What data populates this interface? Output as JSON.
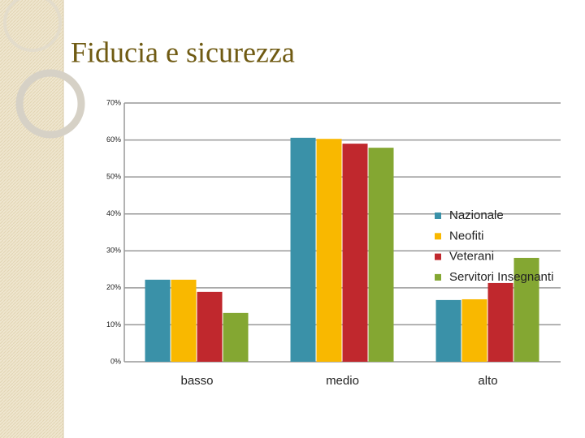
{
  "chart_data": {
    "type": "bar",
    "title": "Fiducia e sicurezza",
    "categories": [
      "basso",
      "medio",
      "alto"
    ],
    "series": [
      {
        "name": "Nazionale",
        "color": "#3a91a8",
        "values": [
          22.2,
          60.6,
          16.7
        ]
      },
      {
        "name": "Neofiti",
        "color": "#f9b800",
        "values": [
          22.2,
          60.3,
          16.9
        ]
      },
      {
        "name": "Veterani",
        "color": "#c0282d",
        "values": [
          18.9,
          59,
          21.3
        ]
      },
      {
        "name": "Servitori Insegnanti",
        "color": "#84a732",
        "values": [
          13.2,
          57.9,
          28.1
        ]
      }
    ],
    "ylim": [
      0,
      70
    ],
    "yticks": [
      {
        "value": 0,
        "label": "0%"
      },
      {
        "value": 10,
        "label": "10%"
      },
      {
        "value": 20,
        "label": "20%"
      },
      {
        "value": 30,
        "label": "30%"
      },
      {
        "value": 40,
        "label": "40%"
      },
      {
        "value": 50,
        "label": "50%"
      },
      {
        "value": 60,
        "label": "60%"
      },
      {
        "value": 70,
        "label": "70%"
      }
    ],
    "grid": true,
    "legend": "right"
  }
}
